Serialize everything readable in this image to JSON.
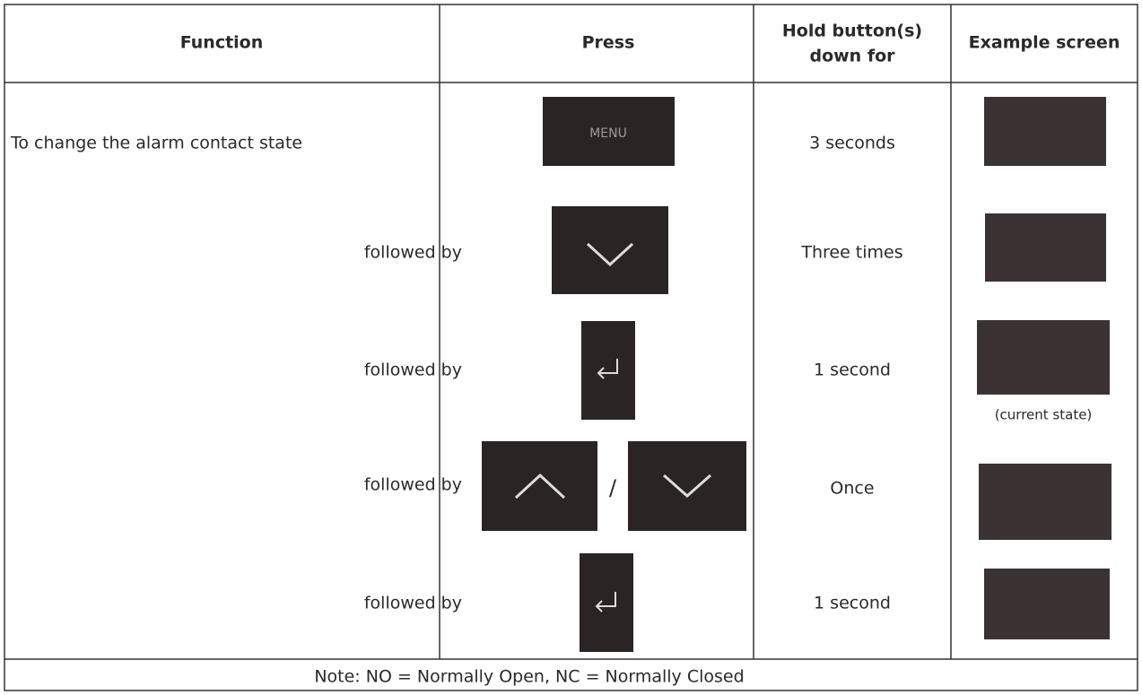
{
  "header": {
    "columns": [
      "Function",
      "Press",
      [
        "Hold button(s)",
        "down for"
      ],
      "Example screen"
    ]
  },
  "rows": [
    {
      "function": "To change the alarm contact state",
      "press": "MENU",
      "hold": "3 seconds"
    },
    {
      "function": "followed by",
      "hold": "Three times"
    },
    {
      "function": "followed by",
      "hold": "1 second",
      "screen_caption": "(current state)"
    },
    {
      "function": "followed by",
      "press_separator": "/",
      "hold": "Once"
    },
    {
      "function": "followed by",
      "hold": "1 second"
    }
  ],
  "note": "Note: NO = Normally Open, NC = Normally Closed"
}
